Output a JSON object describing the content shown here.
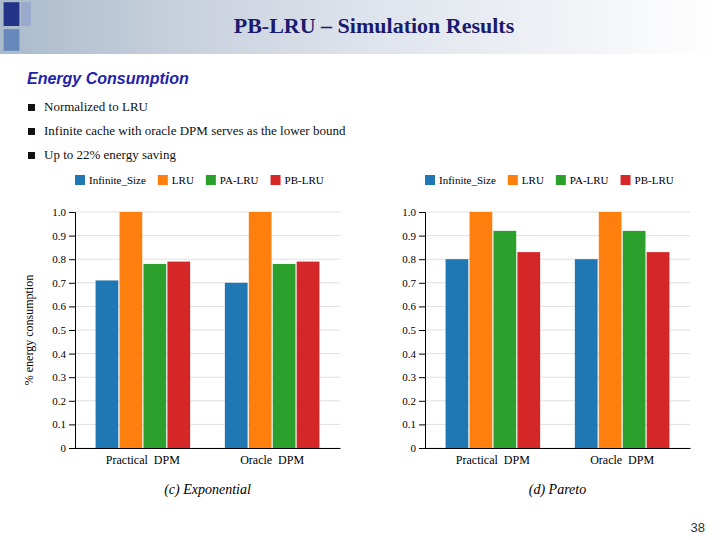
{
  "title": "PB-LRU – Simulation Results",
  "subtitle": "Energy Consumption",
  "annotations": [
    "Normalized to LRU",
    "Infinite cache with oracle DPM serves as the lower bound",
    "Up to 22% energy saving"
  ],
  "slide_number": "38",
  "chart_data": [
    {
      "type": "bar",
      "title": "(c) Exponential",
      "ylabel": "% energy consumption",
      "categories": [
        "Practical  DPM",
        "Oracle  DPM"
      ],
      "series": [
        {
          "name": "Infinite_Size",
          "values": [
            0.71,
            0.7
          ]
        },
        {
          "name": "LRU",
          "values": [
            1.0,
            1.0
          ]
        },
        {
          "name": "PA-LRU",
          "values": [
            0.78,
            0.78
          ]
        },
        {
          "name": "PB-LRU",
          "values": [
            0.79,
            0.79
          ]
        }
      ],
      "ylim": [
        0,
        1.0
      ],
      "yticks": [
        0,
        0.1,
        0.2,
        0.3,
        0.4,
        0.5,
        0.6,
        0.7,
        0.8,
        0.9,
        {
          "value": 1.0,
          "label": "1.0"
        }
      ],
      "grid": true,
      "legend": "top-left"
    },
    {
      "type": "bar",
      "title": "(d) Pareto",
      "categories": [
        "Practical  DPM",
        "Oracle  DPM"
      ],
      "series": [
        {
          "name": "Infinite_Size",
          "values": [
            0.8,
            0.8
          ]
        },
        {
          "name": "LRU",
          "values": [
            1.0,
            1.0
          ]
        },
        {
          "name": "PA-LRU",
          "values": [
            0.92,
            0.92
          ]
        },
        {
          "name": "PB-LRU",
          "values": [
            0.83,
            0.83
          ]
        }
      ],
      "ylim": [
        0,
        1.0
      ],
      "yticks": [
        0,
        0.1,
        0.2,
        0.3,
        0.4,
        0.5,
        0.6,
        0.7,
        0.8,
        0.9,
        {
          "value": 1.0,
          "label": "1.0"
        }
      ],
      "grid": true,
      "legend": "top-left"
    }
  ]
}
